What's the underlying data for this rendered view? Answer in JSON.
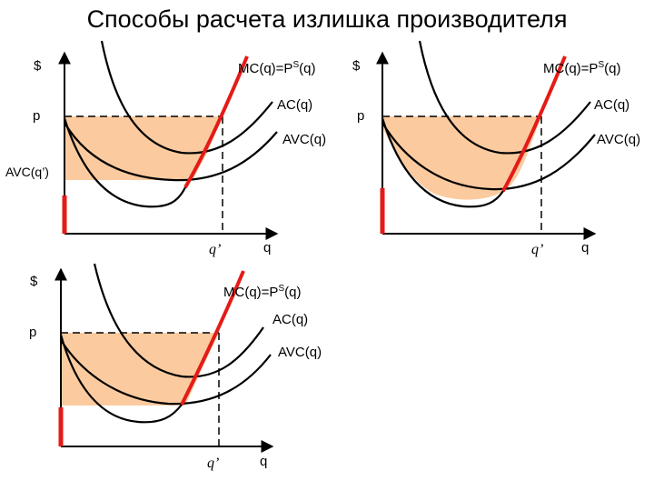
{
  "title": "Способы расчета излишка производителя",
  "colors": {
    "surplus_fill": "#FBCB9F",
    "mc_curve": "#E41B17",
    "curves": "#000000",
    "axes": "#000000",
    "dashed": "#000000"
  },
  "panels": [
    {
      "id": "top-left",
      "y_axis_label": "$",
      "x_axis_label": "q",
      "price_label": "p",
      "qprime_label": "q’",
      "mc_label": "MC(q)=P",
      "mc_sup": "S",
      "mc_tail": "(q)",
      "ac_label": "AC(q)",
      "avc_label": "AVC(q)",
      "avc_min_label": "AVC(q’)"
    },
    {
      "id": "top-right",
      "y_axis_label": "$",
      "x_axis_label": "q",
      "price_label": "p",
      "qprime_label": "q’",
      "mc_label": "MC(q)=P",
      "mc_sup": "S",
      "mc_tail": "(q)",
      "ac_label": "AC(q)",
      "avc_label": "AVC(q)"
    },
    {
      "id": "bottom-left",
      "y_axis_label": "$",
      "x_axis_label": "q",
      "price_label": "p",
      "qprime_label": "q’",
      "mc_label": "MC(q)=P",
      "mc_sup": "S",
      "mc_tail": "(q)",
      "ac_label": "AC(q)",
      "avc_label": "AVC(q)"
    }
  ]
}
